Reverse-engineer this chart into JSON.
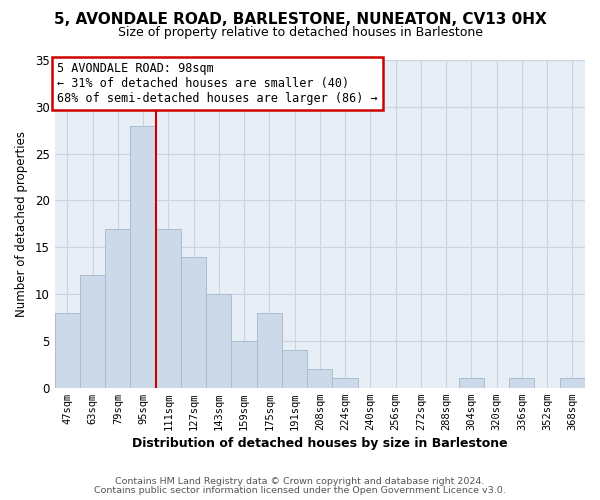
{
  "title": "5, AVONDALE ROAD, BARLESTONE, NUNEATON, CV13 0HX",
  "subtitle": "Size of property relative to detached houses in Barlestone",
  "xlabel": "Distribution of detached houses by size in Barlestone",
  "ylabel": "Number of detached properties",
  "bar_color": "#ccd9e8",
  "bar_edge_color": "#aabcce",
  "bin_labels": [
    "47sqm",
    "63sqm",
    "79sqm",
    "95sqm",
    "111sqm",
    "127sqm",
    "143sqm",
    "159sqm",
    "175sqm",
    "191sqm",
    "208sqm",
    "224sqm",
    "240sqm",
    "256sqm",
    "272sqm",
    "288sqm",
    "304sqm",
    "320sqm",
    "336sqm",
    "352sqm",
    "368sqm"
  ],
  "bar_heights": [
    8,
    12,
    17,
    28,
    17,
    14,
    10,
    5,
    8,
    4,
    2,
    1,
    0,
    0,
    0,
    0,
    1,
    0,
    1,
    0,
    1
  ],
  "ylim": [
    0,
    35
  ],
  "yticks": [
    0,
    5,
    10,
    15,
    20,
    25,
    30,
    35
  ],
  "annotation_text": "5 AVONDALE ROAD: 98sqm\n← 31% of detached houses are smaller (40)\n68% of semi-detached houses are larger (86) →",
  "annotation_box_color": "#ffffff",
  "annotation_box_edge": "#cc0000",
  "property_line_color": "#cc0000",
  "footer_line1": "Contains HM Land Registry data © Crown copyright and database right 2024.",
  "footer_line2": "Contains public sector information licensed under the Open Government Licence v3.0.",
  "background_color": "#ffffff",
  "plot_bg_color": "#e8eef5",
  "grid_color": "#c8d4e0",
  "title_fontsize": 11,
  "subtitle_fontsize": 9
}
